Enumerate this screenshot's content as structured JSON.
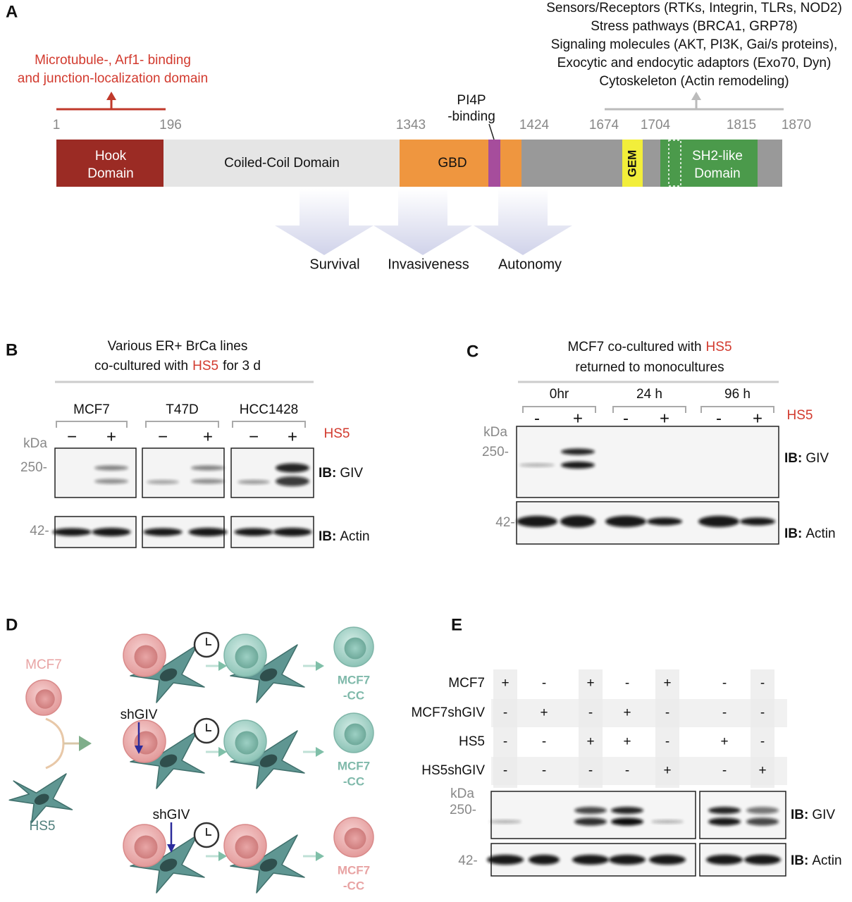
{
  "panel_a": {
    "label": "A",
    "interactors": [
      "Sensors/Receptors (RTKs, Integrin, TLRs, NOD2)",
      "Stress pathways (BRCA1, GRP78)",
      "Signaling molecules (AKT, PI3K, Gai/s proteins),",
      "Exocytic and endocytic adaptors (Exo70, Dyn)",
      "Cytoskeleton (Actin remodeling)"
    ],
    "hook_region_note": [
      "Microtubule-, Arf1- binding",
      "and junction-localization domain"
    ],
    "residues": [
      1,
      196,
      1343,
      1424,
      1674,
      1704,
      1815,
      1870
    ],
    "pi4p_label": [
      "PI4P",
      "-binding"
    ],
    "domains": {
      "hook": [
        "Hook",
        "Domain"
      ],
      "coiled_coil": "Coiled-Coil Domain",
      "gbd": "GBD",
      "gem": "GEM",
      "sh2": [
        "SH2-like",
        "Domain"
      ]
    },
    "outcomes": [
      "Survival",
      "Invasiveness",
      "Autonomy"
    ]
  },
  "panel_b": {
    "label": "B",
    "title": {
      "line1": "Various ER+ BrCa lines",
      "line2_start": "co-cultured with",
      "highlight": "HS5",
      "line2_end": "for 3 d"
    },
    "cell_lines": [
      "MCF7",
      "T47D",
      "HCC1428"
    ],
    "treatment": [
      [
        "−",
        "+"
      ],
      [
        "−",
        "+"
      ],
      [
        "−",
        "+"
      ]
    ],
    "treatment_label": "HS5",
    "unit": "kDa",
    "markers": [
      "250-",
      "42-"
    ],
    "blots": [
      {
        "ib": "IB:",
        "target": "GIV"
      },
      {
        "ib": "IB:",
        "target": "Actin"
      }
    ]
  },
  "panel_c": {
    "label": "C",
    "title": {
      "line1_start": "MCF7 co-cultured with",
      "highlight": "HS5",
      "line2": "returned to monocultures"
    },
    "timepoints": [
      "0hr",
      "24 h",
      "96 h"
    ],
    "treatment": [
      [
        "-",
        "+"
      ],
      [
        "-",
        "+"
      ],
      [
        "-",
        "+"
      ]
    ],
    "treatment_label": "HS5",
    "unit": "kDa",
    "markers": [
      "250-",
      "42-"
    ],
    "blots": [
      {
        "ib": "IB:",
        "target": "GIV"
      },
      {
        "ib": "IB:",
        "target": "Actin"
      }
    ]
  },
  "panel_d": {
    "label": "D",
    "input_cells": [
      "MCF7",
      "HS5"
    ],
    "knockdown": [
      "shGIV",
      "shGIV"
    ],
    "outcomes": [
      [
        "MCF7",
        "-CC"
      ],
      [
        "MCF7",
        "-CC"
      ],
      [
        "MCF7",
        "-CC"
      ]
    ]
  },
  "panel_e": {
    "label": "E",
    "rows": [
      {
        "name": "MCF7",
        "signs": [
          "+",
          "-",
          "+",
          "-",
          "+",
          "-",
          "-"
        ]
      },
      {
        "name": "MCF7shGIV",
        "signs": [
          "-",
          "+",
          "-",
          "+",
          "-",
          "-",
          "-"
        ]
      },
      {
        "name": "HS5",
        "signs": [
          "-",
          "-",
          "+",
          "+",
          "-",
          "+",
          "-"
        ]
      },
      {
        "name": "HS5shGIV",
        "signs": [
          "-",
          "-",
          "-",
          "-",
          "+",
          "-",
          "+"
        ]
      }
    ],
    "unit": "kDa",
    "markers": [
      "250-",
      "42-"
    ],
    "blots": [
      {
        "ib": "IB:",
        "target": "GIV"
      },
      {
        "ib": "IB:",
        "target": "Actin"
      }
    ]
  }
}
